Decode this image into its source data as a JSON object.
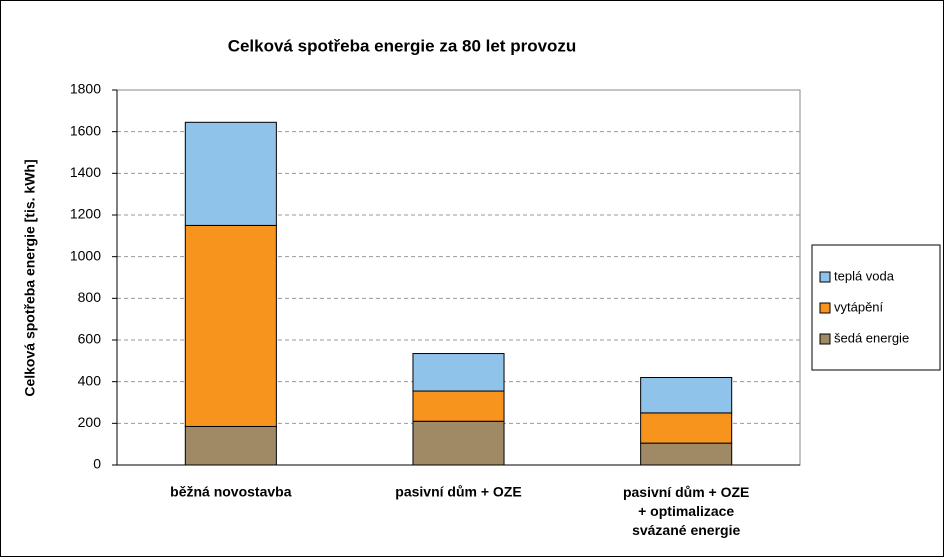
{
  "chart_data": {
    "type": "stacked_bar",
    "title": "Celková spotřeba energie za 80 let provozu",
    "y_label": "Celková spotřeba energie [tis. kWh]",
    "categories": [
      "běžná novostavba",
      "pasivní dům + OZE",
      "pasivní dům + OZE\n+ optimalizace\nsvázané energie"
    ],
    "series": [
      {
        "name": "šedá energie",
        "color": "#a08a66",
        "values": [
          185,
          210,
          105
        ]
      },
      {
        "name": "vytápění",
        "color": "#f7941d",
        "values": [
          965,
          145,
          145
        ]
      },
      {
        "name": "teplá voda",
        "color": "#8fc3ea",
        "values": [
          495,
          180,
          170
        ]
      }
    ],
    "ylim": [
      0,
      1800
    ],
    "yticks": [
      0,
      200,
      400,
      600,
      800,
      1000,
      1200,
      1400,
      1600,
      1800
    ],
    "grid": true,
    "legend": "right"
  }
}
